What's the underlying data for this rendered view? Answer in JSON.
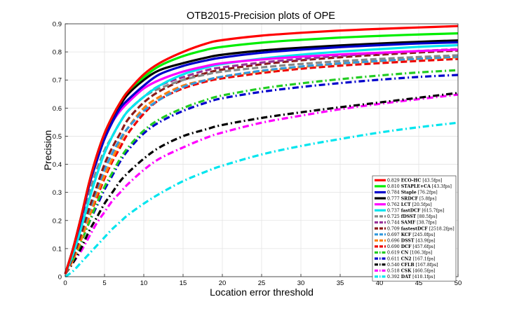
{
  "chart_data": {
    "type": "line",
    "title": "OTB2015-Precision plots of OPE",
    "xlabel": "Location error threshold",
    "ylabel": "Precision",
    "xlim": [
      0,
      50
    ],
    "ylim": [
      0,
      0.9
    ],
    "xticks": [
      "0",
      "5",
      "10",
      "15",
      "20",
      "25",
      "30",
      "35",
      "40",
      "45",
      "50"
    ],
    "yticks": [
      "0",
      "0.1",
      "0.2",
      "0.3",
      "0.4",
      "0.5",
      "0.6",
      "0.7",
      "0.8",
      "0.9"
    ],
    "grid": true,
    "legend_position": "bottom-right",
    "x": [
      0,
      1,
      2,
      3,
      4,
      5,
      6,
      7,
      8,
      10,
      12,
      15,
      18,
      20,
      25,
      30,
      35,
      40,
      45,
      50
    ],
    "series": [
      {
        "name": "ECO-HC",
        "score": "0.829",
        "speed": "[43.5fps]",
        "color": "#ff0000",
        "dash": "solid",
        "values": [
          0.01,
          0.1,
          0.21,
          0.33,
          0.43,
          0.51,
          0.57,
          0.62,
          0.66,
          0.72,
          0.76,
          0.8,
          0.83,
          0.842,
          0.858,
          0.868,
          0.876,
          0.882,
          0.887,
          0.892
        ]
      },
      {
        "name": "STAPLE+CA",
        "score": "0.810",
        "speed": "[43.3fps]",
        "color": "#00ee00",
        "dash": "solid",
        "values": [
          0.01,
          0.1,
          0.21,
          0.33,
          0.43,
          0.51,
          0.57,
          0.62,
          0.66,
          0.71,
          0.75,
          0.785,
          0.808,
          0.818,
          0.833,
          0.843,
          0.851,
          0.857,
          0.862,
          0.866
        ]
      },
      {
        "name": "Staple",
        "score": "0.784",
        "speed": "[76.2fps]",
        "color": "#0000cc",
        "dash": "solid",
        "values": [
          0.01,
          0.1,
          0.2,
          0.32,
          0.41,
          0.49,
          0.55,
          0.6,
          0.63,
          0.68,
          0.72,
          0.75,
          0.77,
          0.78,
          0.797,
          0.808,
          0.817,
          0.824,
          0.83,
          0.834
        ]
      },
      {
        "name": "SRDCF",
        "score": "0.777",
        "speed": "[5.8fps]",
        "color": "#000000",
        "dash": "solid",
        "values": [
          0.01,
          0.1,
          0.21,
          0.32,
          0.42,
          0.5,
          0.56,
          0.61,
          0.65,
          0.7,
          0.735,
          0.76,
          0.78,
          0.79,
          0.805,
          0.815,
          0.823,
          0.83,
          0.836,
          0.841
        ]
      },
      {
        "name": "LCT",
        "score": "0.762",
        "speed": "[20.5fps]",
        "color": "#ff00ff",
        "dash": "solid",
        "values": [
          0.01,
          0.1,
          0.21,
          0.32,
          0.42,
          0.49,
          0.55,
          0.59,
          0.62,
          0.67,
          0.7,
          0.73,
          0.75,
          0.76,
          0.773,
          0.783,
          0.791,
          0.797,
          0.803,
          0.808
        ]
      },
      {
        "name": "fastDCF",
        "score": "0.737",
        "speed": "[615.7fps]",
        "color": "#00e5ee",
        "dash": "solid",
        "values": [
          0.01,
          0.08,
          0.17,
          0.27,
          0.36,
          0.44,
          0.5,
          0.55,
          0.59,
          0.64,
          0.68,
          0.72,
          0.745,
          0.757,
          0.776,
          0.79,
          0.801,
          0.81,
          0.818,
          0.824
        ]
      },
      {
        "name": "fDSST",
        "score": "0.725",
        "speed": "[80.5fps]",
        "color": "#888888",
        "dash": "dash",
        "values": [
          0.01,
          0.09,
          0.19,
          0.29,
          0.38,
          0.45,
          0.5,
          0.55,
          0.59,
          0.64,
          0.67,
          0.7,
          0.72,
          0.73,
          0.745,
          0.757,
          0.767,
          0.775,
          0.782,
          0.788
        ]
      },
      {
        "name": "SAMF",
        "score": "0.744",
        "speed": "[38.7fps]",
        "color": "#993399",
        "dash": "dash",
        "values": [
          0.01,
          0.09,
          0.18,
          0.28,
          0.37,
          0.44,
          0.5,
          0.55,
          0.59,
          0.64,
          0.68,
          0.71,
          0.735,
          0.745,
          0.762,
          0.775,
          0.786,
          0.795,
          0.803,
          0.81
        ]
      },
      {
        "name": "fastestDCF",
        "score": "0.709",
        "speed": "[2518.2fps]",
        "color": "#8b1a1a",
        "dash": "dash",
        "values": [
          0.01,
          0.07,
          0.15,
          0.24,
          0.32,
          0.4,
          0.46,
          0.51,
          0.56,
          0.62,
          0.66,
          0.7,
          0.725,
          0.737,
          0.756,
          0.77,
          0.781,
          0.79,
          0.798,
          0.805
        ]
      },
      {
        "name": "KCF",
        "score": "0.697",
        "speed": "[245.0fps]",
        "color": "#3399dd",
        "dash": "dash",
        "values": [
          0.01,
          0.07,
          0.15,
          0.23,
          0.31,
          0.38,
          0.44,
          0.49,
          0.53,
          0.59,
          0.63,
          0.675,
          0.7,
          0.712,
          0.733,
          0.748,
          0.759,
          0.768,
          0.776,
          0.783
        ]
      },
      {
        "name": "DSST",
        "score": "0.696",
        "speed": "[43.9fps]",
        "color": "#ff7f0e",
        "dash": "dash",
        "values": [
          0.01,
          0.06,
          0.13,
          0.21,
          0.29,
          0.36,
          0.42,
          0.48,
          0.53,
          0.6,
          0.64,
          0.68,
          0.7,
          0.712,
          0.731,
          0.746,
          0.758,
          0.767,
          0.775,
          0.781
        ]
      },
      {
        "name": "DCF",
        "score": "0.690",
        "speed": "[457.6fps]",
        "color": "#ee0000",
        "dash": "dash",
        "values": [
          0.01,
          0.06,
          0.13,
          0.21,
          0.28,
          0.35,
          0.41,
          0.46,
          0.51,
          0.58,
          0.63,
          0.67,
          0.695,
          0.706,
          0.725,
          0.74,
          0.751,
          0.76,
          0.768,
          0.775
        ]
      },
      {
        "name": "CN",
        "score": "0.619",
        "speed": "[106.3fps]",
        "color": "#22cc22",
        "dash": "dashdot",
        "values": [
          0.01,
          0.06,
          0.12,
          0.19,
          0.26,
          0.32,
          0.37,
          0.42,
          0.46,
          0.52,
          0.56,
          0.6,
          0.63,
          0.645,
          0.67,
          0.688,
          0.703,
          0.716,
          0.727,
          0.735
        ]
      },
      {
        "name": "CN2",
        "score": "0.611",
        "speed": "[167.1fps]",
        "color": "#0000cc",
        "dash": "dashdot",
        "values": [
          0.01,
          0.06,
          0.12,
          0.19,
          0.25,
          0.31,
          0.36,
          0.41,
          0.45,
          0.51,
          0.55,
          0.59,
          0.62,
          0.635,
          0.658,
          0.675,
          0.689,
          0.701,
          0.711,
          0.718
        ]
      },
      {
        "name": "CFLB",
        "score": "0.540",
        "speed": "[167.8fps]",
        "color": "#000000",
        "dash": "dashdot",
        "values": [
          0.01,
          0.05,
          0.1,
          0.16,
          0.21,
          0.26,
          0.3,
          0.34,
          0.37,
          0.42,
          0.46,
          0.5,
          0.525,
          0.54,
          0.565,
          0.585,
          0.603,
          0.62,
          0.637,
          0.654
        ]
      },
      {
        "name": "CSK",
        "score": "0.518",
        "speed": "[460.5fps]",
        "color": "#ff00ff",
        "dash": "dashdot",
        "values": [
          0.01,
          0.05,
          0.09,
          0.14,
          0.19,
          0.23,
          0.27,
          0.3,
          0.33,
          0.38,
          0.42,
          0.46,
          0.495,
          0.513,
          0.548,
          0.573,
          0.596,
          0.615,
          0.632,
          0.648
        ]
      },
      {
        "name": "DAT",
        "score": "0.392",
        "speed": "[410.1fps]",
        "color": "#00e5ee",
        "dash": "dashdot",
        "values": [
          0.0,
          0.02,
          0.05,
          0.08,
          0.11,
          0.14,
          0.17,
          0.195,
          0.22,
          0.26,
          0.295,
          0.34,
          0.375,
          0.395,
          0.435,
          0.465,
          0.49,
          0.513,
          0.532,
          0.548
        ]
      }
    ]
  }
}
